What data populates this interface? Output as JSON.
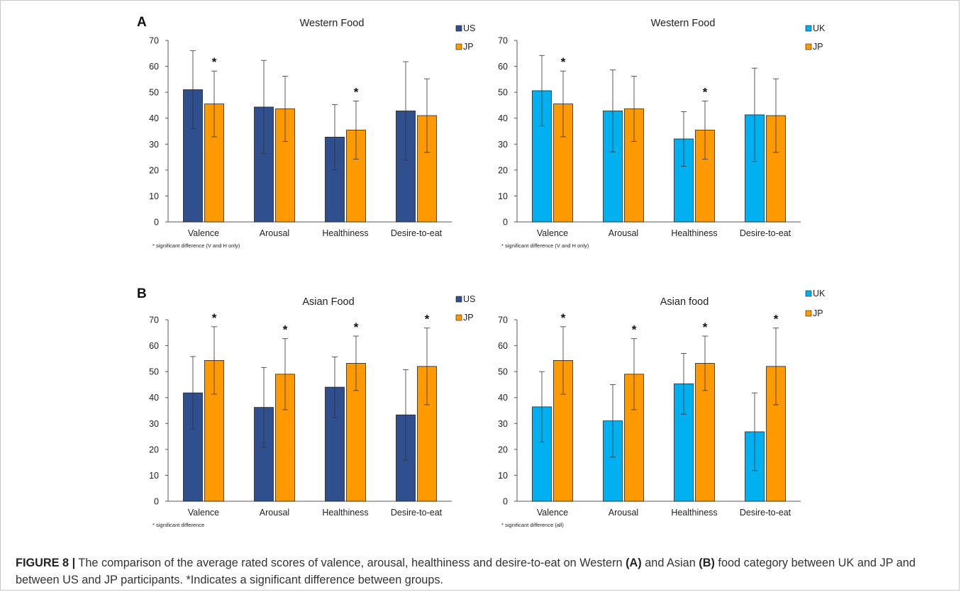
{
  "colors": {
    "US": "#2f4f8f",
    "UK": "#00b0f0",
    "JP": "#ff9900",
    "error": "#333333",
    "axis": "#595959"
  },
  "panels": {
    "A": "A",
    "B": "B"
  },
  "caption": {
    "label": "FIGURE 8 |",
    "part1": " The comparison of the average rated scores of valence, arousal, healthiness and desire-to-eat on Western ",
    "a_ref": "(A)",
    "part2": " and Asian ",
    "b_ref": "(B)",
    "part3": " food category between UK and JP and between US and JP participants. *Indicates a significant difference between groups."
  },
  "chart_data": [
    {
      "type": "bar",
      "title": "Western Food",
      "panel": "A",
      "categories": [
        "Valence",
        "Arousal",
        "Healthiness",
        "Desire-to-eat"
      ],
      "series": [
        {
          "name": "US",
          "values": [
            51,
            44.3,
            32.7,
            42.8
          ],
          "error": [
            15,
            18,
            12.6,
            19
          ]
        },
        {
          "name": "JP",
          "values": [
            45.5,
            43.6,
            35.4,
            41
          ],
          "error": [
            12.7,
            12.6,
            11.2,
            14.2
          ]
        }
      ],
      "significant": [
        "*",
        "",
        "*",
        ""
      ],
      "ylim": [
        0,
        70
      ],
      "yticks": [
        0,
        10,
        20,
        30,
        40,
        50,
        60,
        70
      ],
      "note": "* significant difference (V and H only)",
      "legend": "top-right"
    },
    {
      "type": "bar",
      "title": "Western Food",
      "panel": "A",
      "categories": [
        "Valence",
        "Arousal",
        "Healthiness",
        "Desire-to-eat"
      ],
      "series": [
        {
          "name": "UK",
          "values": [
            50.6,
            42.8,
            32,
            41.3
          ],
          "error": [
            13.6,
            15.8,
            10.5,
            18
          ]
        },
        {
          "name": "JP",
          "values": [
            45.5,
            43.6,
            35.4,
            41
          ],
          "error": [
            12.7,
            12.6,
            11.2,
            14.2
          ]
        }
      ],
      "significant": [
        "*",
        "",
        "*",
        ""
      ],
      "ylim": [
        0,
        70
      ],
      "yticks": [
        0,
        10,
        20,
        30,
        40,
        50,
        60,
        70
      ],
      "note": "* significant difference (V and H only)",
      "legend": "top-right"
    },
    {
      "type": "bar",
      "title": "Asian Food",
      "panel": "B",
      "categories": [
        "Valence",
        "Arousal",
        "Healthiness",
        "Desire-to-eat"
      ],
      "series": [
        {
          "name": "US",
          "values": [
            41.8,
            36.2,
            44,
            33.3
          ],
          "error": [
            14,
            15.4,
            11.7,
            17.4
          ]
        },
        {
          "name": "JP",
          "values": [
            54.3,
            49,
            53.2,
            52
          ],
          "error": [
            13,
            13.7,
            10.5,
            14.8
          ]
        }
      ],
      "significant": [
        "*",
        "*",
        "*",
        "*"
      ],
      "ylim": [
        0,
        70
      ],
      "yticks": [
        0,
        10,
        20,
        30,
        40,
        50,
        60,
        70
      ],
      "note": "* significant difference",
      "legend": "top-right"
    },
    {
      "type": "bar",
      "title": "Asian food",
      "panel": "B",
      "categories": [
        "Valence",
        "Arousal",
        "Healthiness",
        "Desire-to-eat"
      ],
      "series": [
        {
          "name": "UK",
          "values": [
            36.4,
            31,
            45.3,
            26.8
          ],
          "error": [
            13.6,
            14,
            11.7,
            15
          ]
        },
        {
          "name": "JP",
          "values": [
            54.3,
            49,
            53.2,
            52
          ],
          "error": [
            13,
            13.7,
            10.5,
            14.8
          ]
        }
      ],
      "significant": [
        "*",
        "*",
        "*",
        "*"
      ],
      "ylim": [
        0,
        70
      ],
      "yticks": [
        0,
        10,
        20,
        30,
        40,
        50,
        60,
        70
      ],
      "note": "* significant difference (all)",
      "legend": "top-right"
    }
  ]
}
